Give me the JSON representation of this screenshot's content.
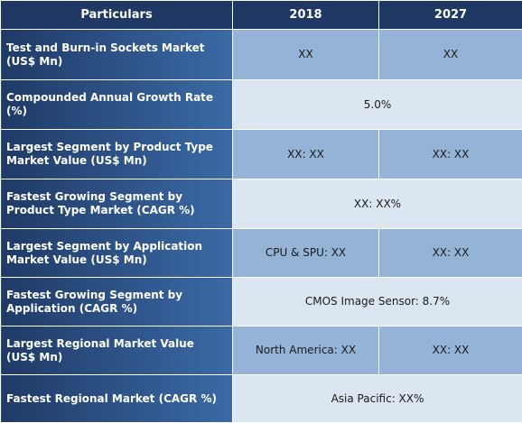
{
  "header": {
    "particulars": "Particulars",
    "year1": "2018",
    "year2": "2027"
  },
  "rows": [
    {
      "label": "Test and Burn-in Sockets Market (US$ Mn)",
      "v2018": "XX",
      "v2027": "XX"
    },
    {
      "label": "Compounded Annual Growth Rate (%)",
      "value": "5.0%"
    },
    {
      "label": "Largest Segment by Product Type Market Value (US$ Mn)",
      "v2018": "XX: XX",
      "v2027": "XX: XX"
    },
    {
      "label": "Fastest Growing Segment by Product Type Market (CAGR %)",
      "value": "XX: XX%"
    },
    {
      "label": "Largest Segment by Application Market Value (US$ Mn)",
      "v2018": "CPU & SPU: XX",
      "v2027": "XX: XX"
    },
    {
      "label": "Fastest Growing Segment by Application (CAGR %)",
      "value": "CMOS Image Sensor: 8.7%"
    },
    {
      "label": "Largest Regional Market Value (US$ Mn)",
      "v2018": "North America: XX",
      "v2027": "XX: XX"
    },
    {
      "label": "Fastest Regional Market (CAGR %)",
      "value": "Asia Pacific: XX%"
    }
  ]
}
